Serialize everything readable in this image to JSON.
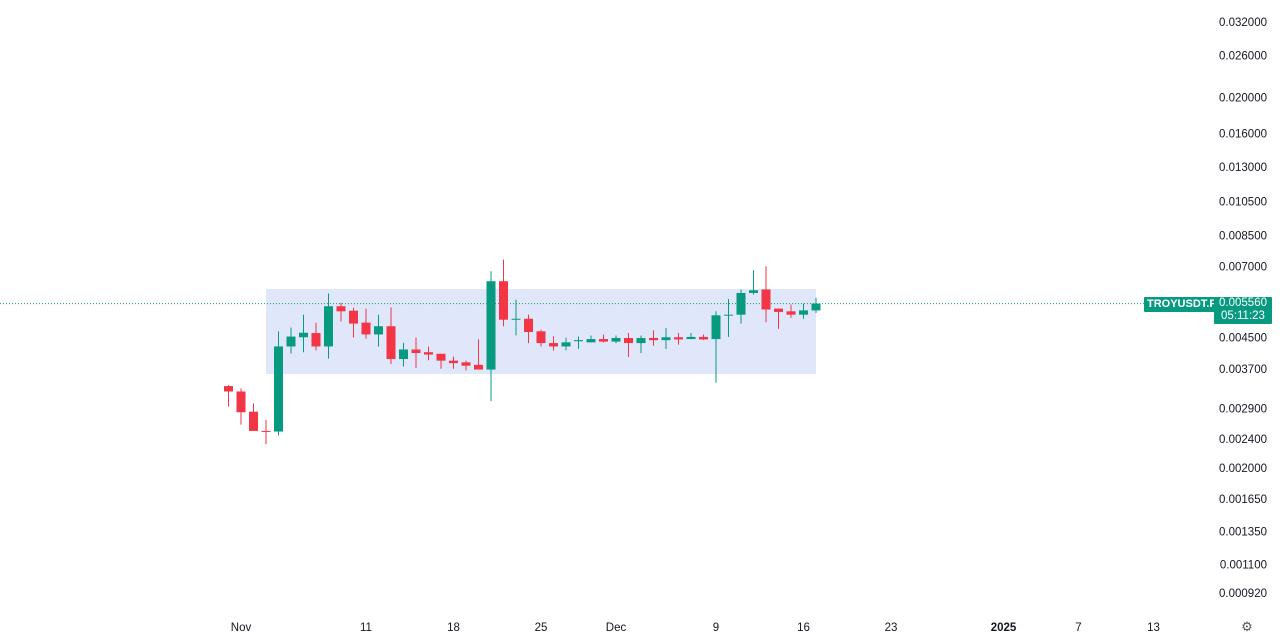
{
  "symbol": "TROYUSDT.P",
  "last_price": "0.005560",
  "countdown": "05:11:23",
  "colors": {
    "up": "#089981",
    "down": "#f23645",
    "range_box": "#dde4fa",
    "last_price_line": "#089981"
  },
  "icons": {
    "settings": "gear-icon"
  },
  "chart_data": {
    "type": "candlestick",
    "y_scale": "log",
    "ylim": [
      0.00085,
      0.034
    ],
    "grid": false,
    "y_ticks": [
      "0.032000",
      "0.026000",
      "0.020000",
      "0.016000",
      "0.013000",
      "0.010500",
      "0.008500",
      "0.007000",
      "0.004500",
      "0.003700",
      "0.002900",
      "0.002400",
      "0.002000",
      "0.001650",
      "0.001350",
      "0.001100",
      "0.000920"
    ],
    "x_ticks": [
      {
        "date": "2024-11-01",
        "label": "Nov",
        "bold": false
      },
      {
        "date": "2024-11-11",
        "label": "11",
        "bold": false
      },
      {
        "date": "2024-11-18",
        "label": "18",
        "bold": false
      },
      {
        "date": "2024-11-25",
        "label": "25",
        "bold": false
      },
      {
        "date": "2024-12-01",
        "label": "Dec",
        "bold": false
      },
      {
        "date": "2024-12-09",
        "label": "9",
        "bold": false
      },
      {
        "date": "2024-12-16",
        "label": "16",
        "bold": false
      },
      {
        "date": "2024-12-23",
        "label": "23",
        "bold": false
      },
      {
        "date": "2025-01-01",
        "label": "2025",
        "bold": true
      },
      {
        "date": "2025-01-07",
        "label": "7",
        "bold": false
      },
      {
        "date": "2025-01-13",
        "label": "13",
        "bold": false
      }
    ],
    "range_box": {
      "from": "2024-11-03",
      "to": "2024-12-17",
      "top": 0.00609,
      "bottom": 0.00359
    },
    "columns": [
      "date",
      "open",
      "high",
      "low",
      "close"
    ],
    "candles": [
      [
        "2024-10-31",
        0.00333,
        0.00335,
        0.00293,
        0.00322
      ],
      [
        "2024-11-01",
        0.00322,
        0.00328,
        0.00262,
        0.00283
      ],
      [
        "2024-11-02",
        0.00284,
        0.00299,
        0.00252,
        0.00252
      ],
      [
        "2024-11-03",
        0.00252,
        0.0027,
        0.00232,
        0.00251
      ],
      [
        "2024-11-04",
        0.00251,
        0.00468,
        0.00245,
        0.00426
      ],
      [
        "2024-11-05",
        0.00426,
        0.00479,
        0.00408,
        0.00453
      ],
      [
        "2024-11-06",
        0.00451,
        0.00519,
        0.00411,
        0.00464
      ],
      [
        "2024-11-07",
        0.00463,
        0.00494,
        0.00416,
        0.00426
      ],
      [
        "2024-11-08",
        0.00426,
        0.00592,
        0.00395,
        0.00547
      ],
      [
        "2024-11-09",
        0.00547,
        0.00559,
        0.00498,
        0.0053
      ],
      [
        "2024-11-10",
        0.00532,
        0.00542,
        0.0045,
        0.00491
      ],
      [
        "2024-11-11",
        0.00494,
        0.00539,
        0.00447,
        0.00459
      ],
      [
        "2024-11-12",
        0.00459,
        0.00519,
        0.00426,
        0.00483
      ],
      [
        "2024-11-13",
        0.00483,
        0.00543,
        0.00382,
        0.00394
      ],
      [
        "2024-11-14",
        0.00394,
        0.00436,
        0.00376,
        0.00418
      ],
      [
        "2024-11-15",
        0.00418,
        0.0045,
        0.00373,
        0.00409
      ],
      [
        "2024-11-16",
        0.00411,
        0.00426,
        0.00391,
        0.00405
      ],
      [
        "2024-11-17",
        0.00407,
        0.00407,
        0.00371,
        0.0039
      ],
      [
        "2024-11-18",
        0.0039,
        0.004,
        0.00371,
        0.00384
      ],
      [
        "2024-11-19",
        0.00386,
        0.0039,
        0.00367,
        0.00378
      ],
      [
        "2024-11-20",
        0.0038,
        0.00445,
        0.00369,
        0.00369
      ],
      [
        "2024-11-21",
        0.00369,
        0.0068,
        0.00303,
        0.00639
      ],
      [
        "2024-11-22",
        0.00639,
        0.00731,
        0.00483,
        0.00503
      ],
      [
        "2024-11-23",
        0.00506,
        0.0057,
        0.00456,
        0.00506
      ],
      [
        "2024-11-24",
        0.00506,
        0.00519,
        0.00435,
        0.00466
      ],
      [
        "2024-11-25",
        0.00468,
        0.00473,
        0.00426,
        0.00435
      ],
      [
        "2024-11-26",
        0.00435,
        0.00454,
        0.00415,
        0.00426
      ],
      [
        "2024-11-27",
        0.00426,
        0.0045,
        0.00416,
        0.00437
      ],
      [
        "2024-11-28",
        0.0044,
        0.00453,
        0.0042,
        0.00443
      ],
      [
        "2024-11-29",
        0.00437,
        0.00456,
        0.00437,
        0.00446
      ],
      [
        "2024-11-30",
        0.00446,
        0.00459,
        0.00437,
        0.00439
      ],
      [
        "2024-12-01",
        0.00439,
        0.00456,
        0.00435,
        0.00449
      ],
      [
        "2024-12-02",
        0.00449,
        0.00463,
        0.00399,
        0.00435
      ],
      [
        "2024-12-03",
        0.00435,
        0.00456,
        0.00409,
        0.00449
      ],
      [
        "2024-12-04",
        0.00449,
        0.00471,
        0.00428,
        0.00443
      ],
      [
        "2024-12-05",
        0.00443,
        0.00478,
        0.00419,
        0.00451
      ],
      [
        "2024-12-06",
        0.00451,
        0.00463,
        0.00431,
        0.00445
      ],
      [
        "2024-12-07",
        0.00446,
        0.00463,
        0.00446,
        0.00452
      ],
      [
        "2024-12-08",
        0.00452,
        0.00459,
        0.00443,
        0.00445
      ],
      [
        "2024-12-09",
        0.00446,
        0.0053,
        0.0034,
        0.00517
      ],
      [
        "2024-12-10",
        0.00519,
        0.00572,
        0.00452,
        0.00519
      ],
      [
        "2024-12-11",
        0.00519,
        0.00607,
        0.00491,
        0.00594
      ],
      [
        "2024-12-12",
        0.00594,
        0.00684,
        0.00588,
        0.00604
      ],
      [
        "2024-12-13",
        0.00607,
        0.00701,
        0.00495,
        0.00536
      ],
      [
        "2024-12-14",
        0.00539,
        0.00539,
        0.00475,
        0.00528
      ],
      [
        "2024-12-15",
        0.0053,
        0.00553,
        0.00509,
        0.00519
      ],
      [
        "2024-12-16",
        0.00519,
        0.00556,
        0.00506,
        0.00533
      ],
      [
        "2024-12-17",
        0.00533,
        0.00576,
        0.00525,
        0.00556
      ]
    ]
  }
}
